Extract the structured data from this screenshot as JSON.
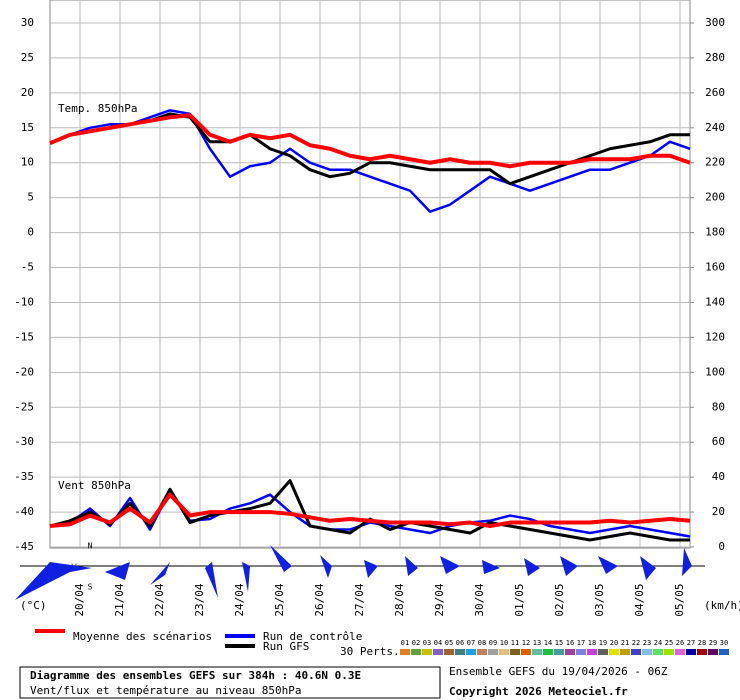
{
  "chart_data": {
    "type": "line",
    "temp_label": "Temp. 850hPa",
    "wind_label": "Vent 850hPa",
    "y_unit": "(°C)",
    "y2_unit": "(km/h)",
    "compass": [
      "N",
      "W",
      "S"
    ],
    "xlim": [
      0,
      384
    ],
    "x": [
      0,
      12,
      24,
      36,
      48,
      60,
      72,
      84,
      96,
      108,
      120,
      132,
      144,
      156,
      168,
      180,
      192,
      204,
      216,
      228,
      240,
      252,
      264,
      276,
      288,
      300,
      312,
      324,
      336,
      348,
      360,
      372,
      384
    ],
    "xticks": [
      {
        "value": 18,
        "label": "20/04"
      },
      {
        "value": 42,
        "label": "21/04"
      },
      {
        "value": 66,
        "label": "22/04"
      },
      {
        "value": 90,
        "label": "23/04"
      },
      {
        "value": 114,
        "label": "24/04"
      },
      {
        "value": 138,
        "label": "25/04"
      },
      {
        "value": 162,
        "label": "26/04"
      },
      {
        "value": 186,
        "label": "27/04"
      },
      {
        "value": 210,
        "label": "28/04"
      },
      {
        "value": 234,
        "label": "29/04"
      },
      {
        "value": 258,
        "label": "30/04"
      },
      {
        "value": 282,
        "label": "01/05"
      },
      {
        "value": 306,
        "label": "02/05"
      },
      {
        "value": 330,
        "label": "03/05"
      },
      {
        "value": 354,
        "label": "04/05"
      },
      {
        "value": 378,
        "label": "05/05"
      }
    ],
    "ylim": [
      -45,
      30
    ],
    "yticks": [
      30,
      25,
      20,
      15,
      10,
      5,
      0,
      -5,
      -10,
      -15,
      -20,
      -25,
      -30,
      -35,
      -40,
      -45
    ],
    "y2lim": [
      0,
      300
    ],
    "y2ticks": [
      300,
      280,
      260,
      240,
      220,
      200,
      180,
      160,
      140,
      120,
      100,
      80,
      60,
      40,
      20,
      0
    ],
    "grid": true,
    "series": [
      {
        "name": "Moyenne des scénarios",
        "color": "#ff0000",
        "values": [
          12.8,
          14,
          14.5,
          15,
          15.5,
          16,
          16.5,
          16.8,
          14,
          13,
          14,
          13.5,
          14,
          12.5,
          12,
          11,
          10.5,
          11,
          10.5,
          10,
          10.5,
          10,
          10,
          9.5,
          10,
          10,
          10,
          10.5,
          10.5,
          10.5,
          11,
          11,
          10
        ]
      },
      {
        "name": "Run de contrôle",
        "color": "#0000ff",
        "values": [
          12.8,
          14,
          15,
          15.5,
          15.5,
          16.5,
          17.5,
          17,
          12,
          8,
          9.5,
          10,
          12,
          10,
          9,
          9,
          8,
          7,
          6,
          3,
          4,
          6,
          8,
          7,
          6,
          7,
          8,
          9,
          9,
          10,
          11,
          13,
          12
        ]
      },
      {
        "name": "Run GFS",
        "color": "#000000",
        "values": [
          12.8,
          14,
          14.5,
          15,
          15.5,
          16,
          17,
          16.5,
          13,
          13,
          14,
          12,
          11,
          9,
          8,
          8.5,
          10,
          10,
          9.5,
          9,
          9,
          9,
          9,
          7,
          8,
          9,
          10,
          11,
          12,
          12.5,
          13,
          14,
          14
        ]
      }
    ],
    "wind_series": [
      {
        "color": "#ff0000",
        "axis": "y2",
        "values": [
          12,
          13,
          18,
          14,
          22,
          14,
          30,
          18,
          20,
          20,
          20,
          20,
          19,
          17,
          15,
          16,
          15,
          14,
          14,
          14,
          13,
          14,
          12,
          14,
          14,
          14,
          14,
          14,
          15,
          14,
          15,
          16,
          15
        ]
      },
      {
        "color": "#0000ff",
        "axis": "y2",
        "values": [
          12,
          14,
          22,
          12,
          28,
          10,
          32,
          15,
          16,
          22,
          25,
          30,
          20,
          12,
          10,
          10,
          14,
          12,
          10,
          8,
          12,
          14,
          15,
          18,
          16,
          12,
          10,
          8,
          10,
          12,
          10,
          8,
          6
        ]
      },
      {
        "color": "#000000",
        "axis": "y2",
        "values": [
          12,
          15,
          20,
          13,
          25,
          12,
          33,
          14,
          18,
          20,
          22,
          25,
          38,
          12,
          10,
          8,
          16,
          10,
          14,
          12,
          10,
          8,
          14,
          12,
          10,
          8,
          6,
          4,
          6,
          8,
          6,
          4,
          4
        ]
      }
    ],
    "perturbations": {
      "label": "30 Perts.",
      "names": [
        "01",
        "02",
        "03",
        "04",
        "05",
        "06",
        "07",
        "08",
        "09",
        "10",
        "11",
        "12",
        "13",
        "14",
        "15",
        "16",
        "17",
        "18",
        "19",
        "20",
        "21",
        "22",
        "23",
        "24",
        "25",
        "26",
        "27",
        "28",
        "29",
        "30"
      ],
      "colors": [
        "#e08020",
        "#60a040",
        "#c0c000",
        "#8060c0",
        "#a06030",
        "#408080",
        "#20a0e0",
        "#c08060",
        "#a0a0a0",
        "#e0c080",
        "#806020",
        "#e06000",
        "#60c0a0",
        "#20c040",
        "#40a0a0",
        "#a040a0",
        "#8080e0",
        "#c040e0",
        "#606060",
        "#e0e000",
        "#c0a000",
        "#4040c0",
        "#80c0e0",
        "#60e060",
        "#a0e000",
        "#e060e0",
        "#0000a0",
        "#a00000",
        "#600060",
        "#2060c0"
      ]
    },
    "footer": {
      "title": "Diagramme des ensembles GEFS sur 384h : 40.6N 0.3E",
      "subtitle": "Vent/flux et température au niveau 850hPa",
      "run": "Ensemble GEFS du 19/04/2026 - 06Z",
      "copyright": "Copyright 2026 Meteociel.fr"
    }
  }
}
